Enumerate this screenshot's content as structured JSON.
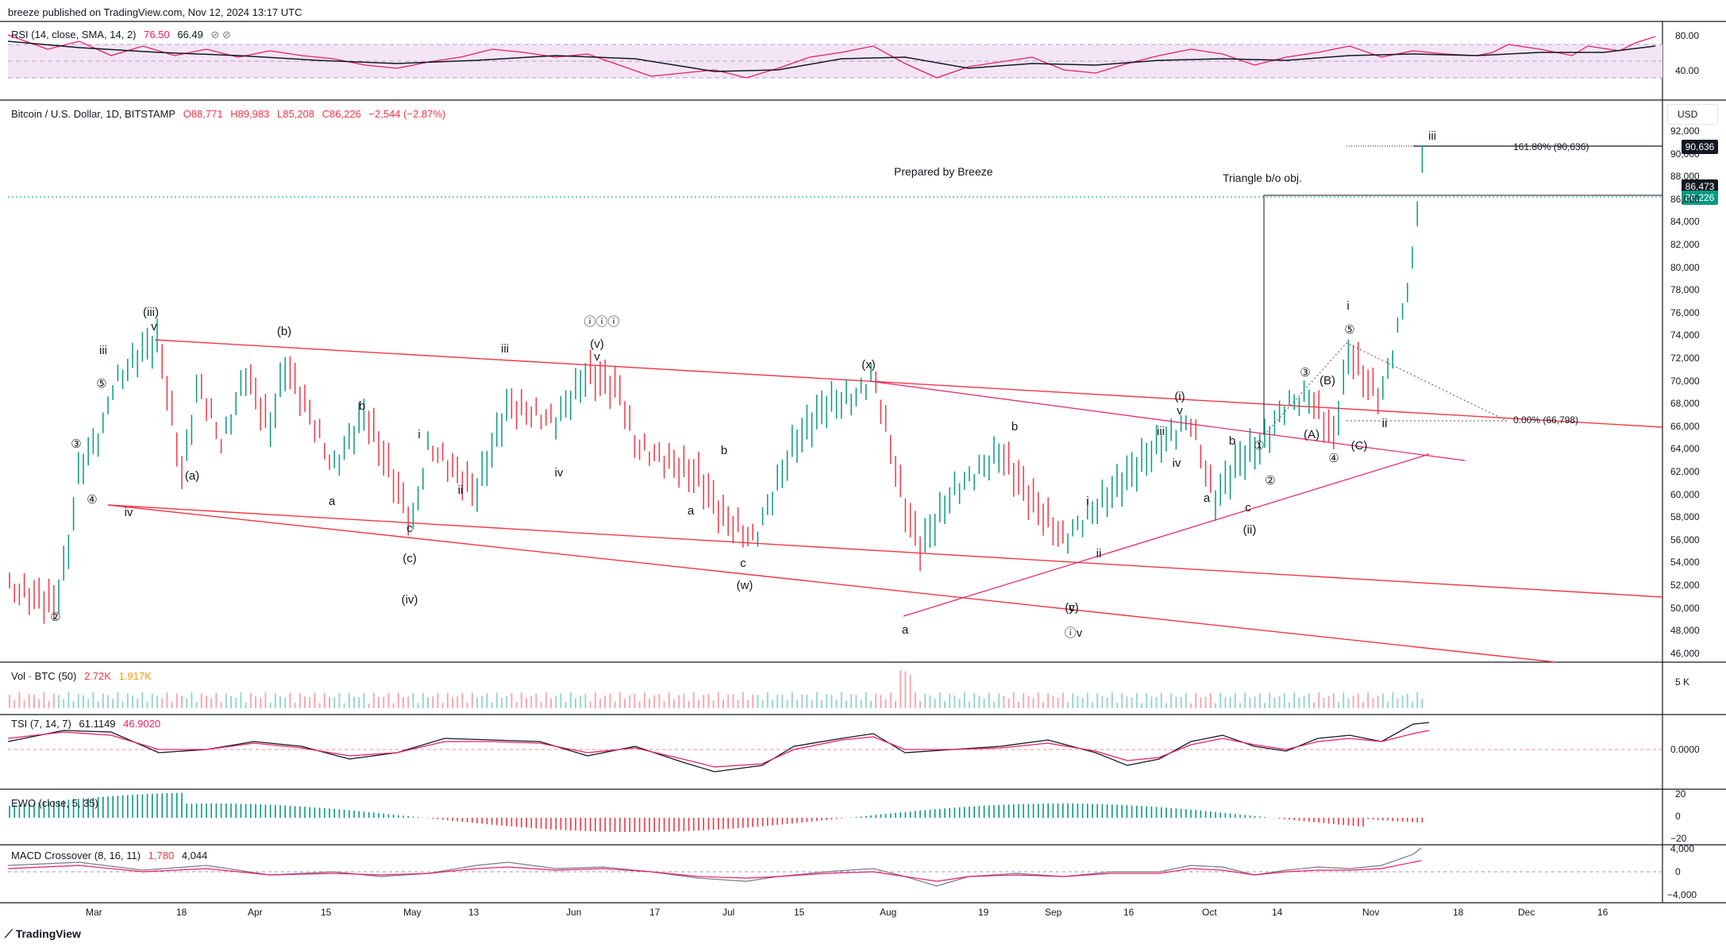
{
  "header": {
    "published": "breeze published on TradingView.com, Nov 12, 2024 13:17 UTC"
  },
  "rsi": {
    "label": "RSI (14, close, SMA, 14, 2)",
    "value1": "76.50",
    "value2": "66.49",
    "axis": [
      "80.00",
      "40.00"
    ],
    "color_rsi": "#e91e63",
    "color_ma": "#131722",
    "band_color": "#f3e5f5"
  },
  "main": {
    "symbol": "Bitcoin / U.S. Dollar, 1D, BITSTAMP",
    "o": "O88,771",
    "h": "H89,983",
    "l": "L85,208",
    "c": "C86,226",
    "change": "−2,544 (−2.87%)",
    "currency": "USD",
    "price_axis": [
      "92,000",
      "90,000",
      "88,000",
      "86,000",
      "84,000",
      "82,000",
      "80,000",
      "78,000",
      "76,000",
      "74,000",
      "72,000",
      "70,000",
      "68,000",
      "66,000",
      "64,000",
      "62,000",
      "60,000",
      "58,000",
      "56,000",
      "54,000",
      "52,000",
      "50,000",
      "48,000",
      "46,000"
    ],
    "badges": {
      "fib": "90,636",
      "bo": "86,473",
      "last": "86,226"
    },
    "notes": {
      "prepared": "Prepared by Breeze",
      "triangle": "Triangle b/o obj.",
      "fib_top": "161.80% (90,636)",
      "fib_zero": "0.00% (66,798)"
    },
    "wave_labels": [
      "②",
      "③",
      "④",
      "⑤",
      "iii",
      "iv",
      "(iii)",
      "v",
      "(a)",
      "(b)",
      "a",
      "b",
      "c",
      "(c)",
      "(iv)",
      "i",
      "ii",
      "iii",
      "iv",
      "(v)",
      "v",
      "ⓘⓘⓘ",
      "a",
      "b",
      "c",
      "(w)",
      "(x)",
      "a",
      "b",
      "c",
      "(y)",
      "ⓘv",
      "i",
      "ii",
      "iii",
      "iv",
      "v",
      "(i)",
      "a",
      "b",
      "c",
      "(ii)",
      "①",
      "②",
      "③",
      "④",
      "⑤",
      "(A)",
      "(B)",
      "(C)",
      "i",
      "ii",
      "iii"
    ],
    "colors": {
      "up": "#089981",
      "down": "#f23645",
      "line": "#f23645",
      "pink": "#e91e63"
    }
  },
  "volume": {
    "label": "Vol · BTC (50)",
    "v1": "2.72K",
    "v2": "1.917K",
    "axis": "5 K"
  },
  "tsi": {
    "label": "TSI (7, 14, 7)",
    "v1": "61.1149",
    "v2": "46.9020",
    "axis": "0.0000"
  },
  "ewo": {
    "label": "EWO (close, 5, 35)",
    "axis": [
      "20",
      "0",
      "−20"
    ]
  },
  "macd": {
    "label": "MACD Crossover (8, 16, 11)",
    "v1": "1,780",
    "v2": "4,044",
    "axis": [
      "4,000",
      "0",
      "−4,000"
    ]
  },
  "time_axis": [
    "Mar",
    "18",
    "Apr",
    "15",
    "May",
    "13",
    "Jun",
    "17",
    "Jul",
    "15",
    "Aug",
    "19",
    "Sep",
    "16",
    "Oct",
    "14",
    "Nov",
    "18",
    "Dec",
    "16"
  ],
  "footer": {
    "brand": "TradingView"
  }
}
